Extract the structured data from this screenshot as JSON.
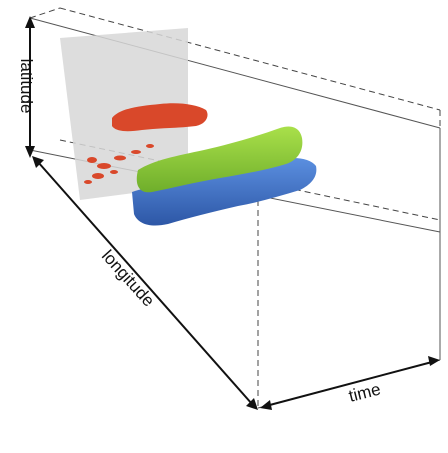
{
  "axes": {
    "latitude": "latitude",
    "longitude": "longitude",
    "time": "time"
  },
  "colors": {
    "slice_plane": "#d7d7d7",
    "surface_red": "#d9482a",
    "surface_green": "#8fcf3a",
    "surface_blue": "#3f72c4",
    "box_lines": "#444444"
  },
  "caption_fragment": ""
}
